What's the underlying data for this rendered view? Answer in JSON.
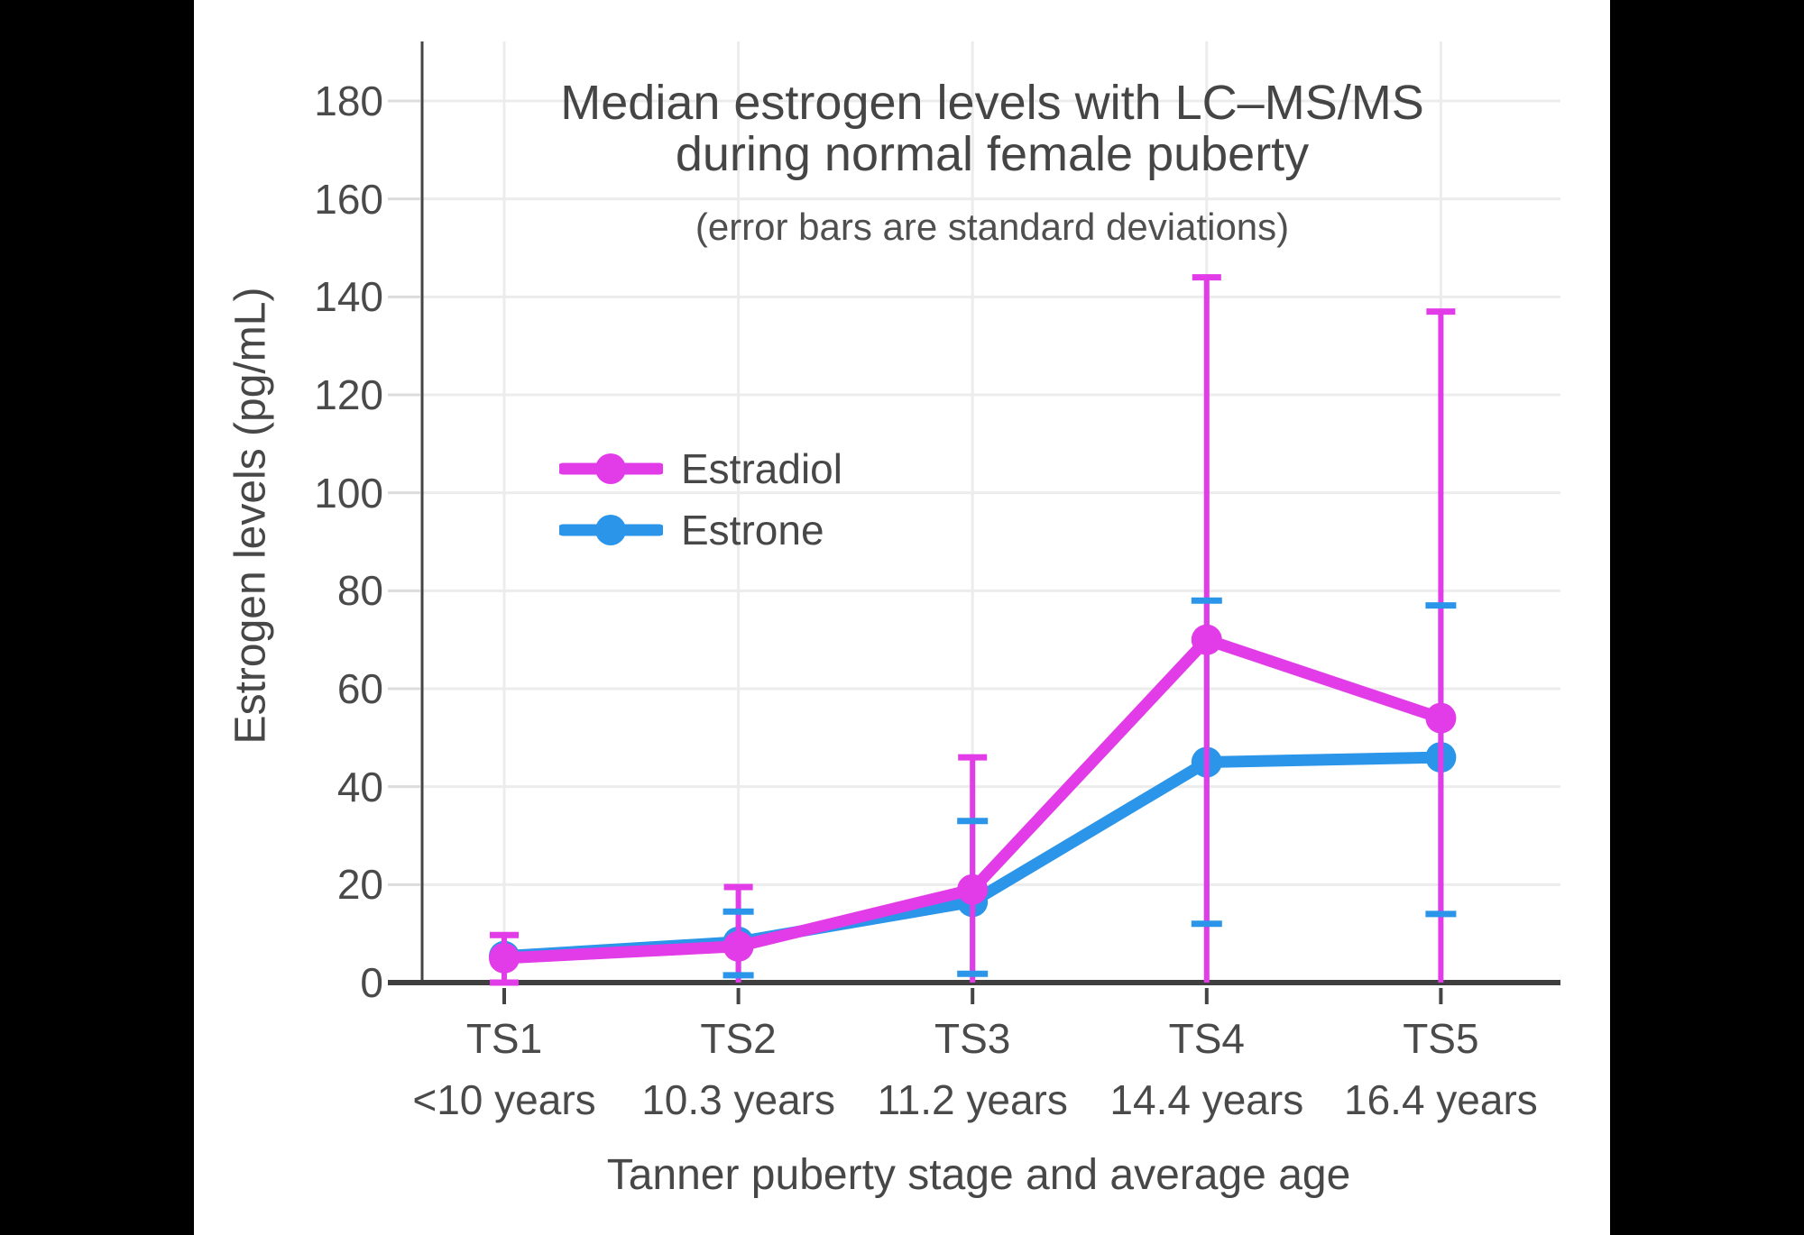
{
  "chart_data": {
    "type": "line",
    "title": "Median estrogen levels with LC–MS/MS during normal female puberty",
    "title_lines": [
      "Median estrogen levels with LC–MS/MS",
      "during normal female puberty"
    ],
    "subtitle": "(error bars are standard deviations)",
    "xlabel": "Tanner puberty stage and average age",
    "ylabel": "Estrogen levels (pg/mL)",
    "y_unit": "pg/mL",
    "ylim": [
      0,
      190
    ],
    "yticks": [
      0,
      20,
      40,
      60,
      80,
      100,
      120,
      140,
      160,
      180
    ],
    "grid": true,
    "legend_position": "inside-upper-left",
    "categories": [
      {
        "stage": "TS1",
        "age": "<10 years"
      },
      {
        "stage": "TS2",
        "age": "10.3 years"
      },
      {
        "stage": "TS3",
        "age": "11.2 years"
      },
      {
        "stage": "TS4",
        "age": "14.4 years"
      },
      {
        "stage": "TS5",
        "age": "16.4 years"
      }
    ],
    "series": [
      {
        "name": "Estradiol",
        "color": "#E23BE8",
        "values": [
          5,
          7.4,
          19,
          70,
          54
        ],
        "error_high": [
          9.7,
          19.5,
          46,
          144,
          137
        ],
        "error_low": [
          0,
          0,
          0,
          0,
          0
        ],
        "error_low_cap": [
          true,
          false,
          false,
          false,
          false
        ],
        "note": "lower whiskers clipped at 0"
      },
      {
        "name": "Estrone",
        "color": "#2B95E9",
        "values": [
          5.4,
          8.3,
          16.5,
          45,
          46
        ],
        "error_high": [
          null,
          14.5,
          33,
          78,
          77
        ],
        "error_low": [
          null,
          1.5,
          1.8,
          12,
          14
        ],
        "error_low_cap": [
          false,
          true,
          true,
          true,
          true
        ]
      }
    ],
    "colors": {
      "axis_line": "#3F3F3F",
      "gridline": "#ECECEC",
      "tick_stub": "#DCDCDC",
      "text": "#474747",
      "letterbox": "#000000",
      "background": "#FFFFFF"
    }
  }
}
